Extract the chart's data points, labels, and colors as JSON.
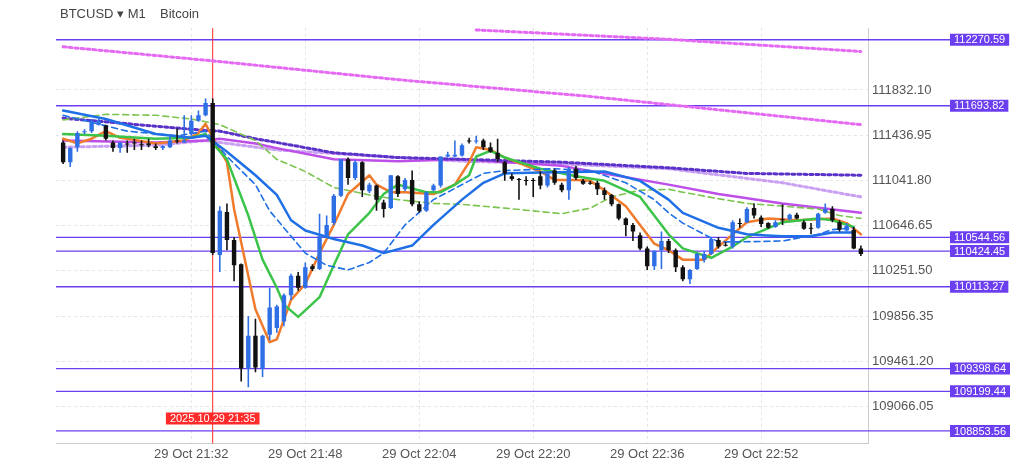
{
  "chart_data": {
    "type": "candlestick",
    "title": "BTCUSD ▾ M1",
    "subtitle": "Bitcoin",
    "x": [
      "2025-10-29T21:14",
      "2025-10-29T21:15",
      "2025-10-29T21:16",
      "2025-10-29T21:17",
      "2025-10-29T21:18",
      "2025-10-29T21:19",
      "2025-10-29T21:20",
      "2025-10-29T21:21",
      "2025-10-29T21:22",
      "2025-10-29T21:23",
      "2025-10-29T21:24",
      "2025-10-29T21:25",
      "2025-10-29T21:26",
      "2025-10-29T21:27",
      "2025-10-29T21:28",
      "2025-10-29T21:29",
      "2025-10-29T21:30",
      "2025-10-29T21:31",
      "2025-10-29T21:32",
      "2025-10-29T21:33",
      "2025-10-29T21:34",
      "2025-10-29T21:35",
      "2025-10-29T21:36",
      "2025-10-29T21:37",
      "2025-10-29T21:38",
      "2025-10-29T21:39",
      "2025-10-29T21:40",
      "2025-10-29T21:41",
      "2025-10-29T21:42",
      "2025-10-29T21:43",
      "2025-10-29T21:44",
      "2025-10-29T21:45",
      "2025-10-29T21:46",
      "2025-10-29T21:47",
      "2025-10-29T21:48",
      "2025-10-29T21:49",
      "2025-10-29T21:50",
      "2025-10-29T21:51",
      "2025-10-29T21:52",
      "2025-10-29T21:53",
      "2025-10-29T21:54",
      "2025-10-29T21:55",
      "2025-10-29T21:56",
      "2025-10-29T21:57",
      "2025-10-29T21:58",
      "2025-10-29T21:59",
      "2025-10-29T22:00",
      "2025-10-29T22:01",
      "2025-10-29T22:02",
      "2025-10-29T22:03",
      "2025-10-29T22:04",
      "2025-10-29T22:05",
      "2025-10-29T22:06",
      "2025-10-29T22:07",
      "2025-10-29T22:08",
      "2025-10-29T22:09",
      "2025-10-29T22:10",
      "2025-10-29T22:11",
      "2025-10-29T22:12",
      "2025-10-29T22:13",
      "2025-10-29T22:14",
      "2025-10-29T22:15",
      "2025-10-29T22:16",
      "2025-10-29T22:17",
      "2025-10-29T22:18",
      "2025-10-29T22:19",
      "2025-10-29T22:20",
      "2025-10-29T22:21",
      "2025-10-29T22:22",
      "2025-10-29T22:23",
      "2025-10-29T22:24",
      "2025-10-29T22:25",
      "2025-10-29T22:26",
      "2025-10-29T22:27",
      "2025-10-29T22:28",
      "2025-10-29T22:29",
      "2025-10-29T22:30",
      "2025-10-29T22:31",
      "2025-10-29T22:32",
      "2025-10-29T22:33",
      "2025-10-29T22:34",
      "2025-10-29T22:35",
      "2025-10-29T22:36",
      "2025-10-29T22:37",
      "2025-10-29T22:38",
      "2025-10-29T22:39",
      "2025-10-29T22:40",
      "2025-10-29T22:41",
      "2025-10-29T22:42",
      "2025-10-29T22:43",
      "2025-10-29T22:44",
      "2025-10-29T22:45",
      "2025-10-29T22:46",
      "2025-10-29T22:47",
      "2025-10-29T22:48",
      "2025-10-29T22:49",
      "2025-10-29T22:50",
      "2025-10-29T22:51",
      "2025-10-29T22:52",
      "2025-10-29T22:53",
      "2025-10-29T22:54",
      "2025-10-29T22:55",
      "2025-10-29T22:56",
      "2025-10-29T22:57",
      "2025-10-29T22:58",
      "2025-10-29T22:59",
      "2025-10-29T23:00",
      "2025-10-29T23:01",
      "2025-10-29T23:02",
      "2025-10-29T23:03",
      "2025-10-29T23:04",
      "2025-10-29T23:05",
      "2025-10-29T23:06"
    ],
    "ohlc": [
      [
        111373,
        111390,
        111185,
        111201
      ],
      [
        111201,
        111332,
        111160,
        111324
      ],
      [
        111332,
        111472,
        111292,
        111455
      ],
      [
        111464,
        111488,
        111447,
        111472
      ],
      [
        111472,
        111578,
        111455,
        111562
      ],
      [
        111529,
        111578,
        111521,
        111562
      ],
      [
        111521,
        111529,
        111390,
        111406
      ],
      [
        111373,
        111390,
        111292,
        111324
      ],
      [
        111324,
        111373,
        111283,
        111373
      ],
      [
        111365,
        111390,
        111283,
        111357
      ],
      [
        111373,
        111406,
        111308,
        111373
      ],
      [
        111357,
        111390,
        111308,
        111349
      ],
      [
        111365,
        111406,
        111332,
        111349
      ],
      [
        111341,
        111365,
        111308,
        111324
      ],
      [
        111324,
        111349,
        111308,
        111341
      ],
      [
        111332,
        111447,
        111324,
        111390
      ],
      [
        111390,
        111496,
        111365,
        111382
      ],
      [
        111373,
        111611,
        111373,
        111390
      ],
      [
        111447,
        111611,
        111431,
        111562
      ],
      [
        111562,
        111652,
        111554,
        111611
      ],
      [
        111611,
        111758,
        111603,
        111717
      ],
      [
        111717,
        111758,
        110391,
        110407
      ],
      [
        110391,
        110817,
        110243,
        110776
      ],
      [
        110767,
        110841,
        110432,
        110522
      ],
      [
        110522,
        110546,
        110161,
        110300
      ],
      [
        110309,
        110317,
        109285,
        109400
      ],
      [
        109400,
        109858,
        109236,
        109686
      ],
      [
        109686,
        109834,
        109367,
        109408
      ],
      [
        109400,
        109694,
        109326,
        109686
      ],
      [
        109694,
        110104,
        109645,
        109932
      ],
      [
        109752,
        109957,
        109711,
        109940
      ],
      [
        109809,
        110055,
        109768,
        110038
      ],
      [
        110038,
        110227,
        109998,
        110210
      ],
      [
        110210,
        110243,
        110079,
        110104
      ],
      [
        110104,
        110325,
        110096,
        110284
      ],
      [
        110292,
        110309,
        110251,
        110268
      ],
      [
        110268,
        110751,
        110260,
        110554
      ],
      [
        110554,
        110735,
        110546,
        110653
      ],
      [
        110669,
        110923,
        110653,
        110907
      ],
      [
        110907,
        111226,
        110898,
        111226
      ],
      [
        111226,
        111242,
        111005,
        111062
      ],
      [
        111062,
        111218,
        111046,
        111201
      ],
      [
        111201,
        111210,
        110898,
        110956
      ],
      [
        110948,
        111021,
        110931,
        111005
      ],
      [
        110997,
        111005,
        110776,
        110874
      ],
      [
        110849,
        110874,
        110718,
        110792
      ],
      [
        110800,
        111087,
        110792,
        111087
      ],
      [
        111079,
        111087,
        110898,
        110923
      ],
      [
        110964,
        111062,
        110948,
        111046
      ],
      [
        111046,
        111128,
        110817,
        110833
      ],
      [
        110833,
        110857,
        110759,
        110776
      ],
      [
        110776,
        110948,
        110767,
        110939
      ],
      [
        110956,
        111013,
        110948,
        110997
      ],
      [
        110997,
        111251,
        110980,
        111251
      ],
      [
        111251,
        111292,
        111242,
        111267
      ],
      [
        111251,
        111390,
        111242,
        111267
      ],
      [
        111259,
        111365,
        111251,
        111349
      ],
      [
        111390,
        111414,
        111365,
        111382
      ],
      [
        111382,
        111431,
        111365,
        111390
      ],
      [
        111390,
        111406,
        111308,
        111332
      ],
      [
        111332,
        111373,
        111283,
        111292
      ],
      [
        111283,
        111406,
        111201,
        111226
      ],
      [
        111201,
        111210,
        111038,
        111103
      ],
      [
        111079,
        111103,
        111038,
        111054
      ],
      [
        111054,
        111062,
        110874,
        111046
      ],
      [
        111046,
        111079,
        110997,
        111038
      ],
      [
        111046,
        111062,
        110898,
        111038
      ],
      [
        111079,
        111120,
        110964,
        110997
      ],
      [
        110997,
        111120,
        110980,
        111103
      ],
      [
        111128,
        111144,
        111005,
        111021
      ],
      [
        111005,
        111021,
        110939,
        110956
      ],
      [
        110956,
        111160,
        110874,
        111144
      ],
      [
        111144,
        111169,
        111046,
        111062
      ],
      [
        111038,
        111054,
        111005,
        111013
      ],
      [
        111021,
        111038,
        111005,
        111013
      ],
      [
        111021,
        111038,
        110915,
        110964
      ],
      [
        110956,
        110980,
        110874,
        110915
      ],
      [
        110915,
        110923,
        110817,
        110833
      ],
      [
        110833,
        110841,
        110694,
        110710
      ],
      [
        110710,
        110718,
        110554,
        110653
      ],
      [
        110653,
        110669,
        110513,
        110595
      ],
      [
        110563,
        110587,
        110432,
        110448
      ],
      [
        110448,
        110464,
        110260,
        110292
      ],
      [
        110292,
        110432,
        110260,
        110423
      ],
      [
        110432,
        110595,
        110268,
        110513
      ],
      [
        110513,
        110530,
        110407,
        110432
      ],
      [
        110432,
        110448,
        110243,
        110284
      ],
      [
        110284,
        110300,
        110161,
        110178
      ],
      [
        110178,
        110268,
        110137,
        110260
      ],
      [
        110268,
        110407,
        110260,
        110399
      ],
      [
        110350,
        110423,
        110325,
        110399
      ],
      [
        110399,
        110546,
        110391,
        110530
      ],
      [
        110522,
        110546,
        110448,
        110464
      ],
      [
        110481,
        110505,
        110464,
        110473
      ],
      [
        110464,
        110694,
        110448,
        110677
      ],
      [
        110669,
        110710,
        110628,
        110669
      ],
      [
        110677,
        110808,
        110669,
        110792
      ],
      [
        110800,
        110841,
        110710,
        110735
      ],
      [
        110718,
        110735,
        110636,
        110661
      ],
      [
        110669,
        110677,
        110620,
        110628
      ],
      [
        110636,
        110694,
        110628,
        110677
      ],
      [
        110702,
        110833,
        110653,
        110694
      ],
      [
        110702,
        110751,
        110694,
        110743
      ],
      [
        110743,
        110759,
        110702,
        110710
      ],
      [
        110677,
        110694,
        110612,
        110620
      ],
      [
        110628,
        110669,
        110571,
        110628
      ],
      [
        110628,
        110759,
        110620,
        110751
      ],
      [
        110759,
        110841,
        110751,
        110792
      ],
      [
        110792,
        110817,
        110677,
        110694
      ],
      [
        110677,
        110694,
        110595,
        110612
      ],
      [
        110604,
        110669,
        110595,
        110645
      ],
      [
        110612,
        110636,
        110440,
        110448
      ],
      [
        110448,
        110473,
        110382,
        110399
      ]
    ],
    "colors": [
      "#111111",
      "#2f6fe6",
      "#2f6fe6",
      "#2f6fe6",
      "#2f6fe6",
      "#2f6fe6",
      "#111111",
      "#111111",
      "#2f6fe6",
      "#111111",
      "#111111",
      "#111111",
      "#111111",
      "#111111",
      "#2f6fe6",
      "#2f6fe6",
      "#111111",
      "#2f6fe6",
      "#2f6fe6",
      "#2f6fe6",
      "#2f6fe6",
      "#111111",
      "#2f6fe6",
      "#111111",
      "#111111",
      "#111111",
      "#2f6fe6",
      "#111111",
      "#2f6fe6",
      "#2f6fe6",
      "#2f6fe6",
      "#2f6fe6",
      "#2f6fe6",
      "#111111",
      "#2f6fe6",
      "#111111",
      "#2f6fe6",
      "#2f6fe6",
      "#2f6fe6",
      "#2f6fe6",
      "#111111",
      "#2f6fe6",
      "#111111",
      "#2f6fe6",
      "#111111",
      "#111111",
      "#2f6fe6",
      "#111111",
      "#2f6fe6",
      "#111111",
      "#111111",
      "#2f6fe6",
      "#2f6fe6",
      "#2f6fe6",
      "#2f6fe6",
      "#2f6fe6",
      "#2f6fe6",
      "#111111",
      "#2f6fe6",
      "#111111",
      "#111111",
      "#111111",
      "#111111",
      "#111111",
      "#111111",
      "#111111",
      "#111111",
      "#111111",
      "#2f6fe6",
      "#111111",
      "#111111",
      "#2f6fe6",
      "#111111",
      "#111111",
      "#111111",
      "#111111",
      "#111111",
      "#111111",
      "#111111",
      "#111111",
      "#111111",
      "#111111",
      "#111111",
      "#2f6fe6",
      "#2f6fe6",
      "#111111",
      "#111111",
      "#111111",
      "#2f6fe6",
      "#2f6fe6",
      "#2f6fe6",
      "#2f6fe6",
      "#111111",
      "#111111",
      "#2f6fe6",
      "#111111",
      "#2f6fe6",
      "#111111",
      "#111111",
      "#111111",
      "#2f6fe6",
      "#111111",
      "#2f6fe6",
      "#111111",
      "#111111",
      "#111111",
      "#2f6fe6",
      "#2f6fe6",
      "#111111",
      "#111111",
      "#2f6fe6",
      "#111111",
      "#111111"
    ],
    "series": [
      {
        "type": "line",
        "color": "#1f6fe6",
        "line_style": "solid",
        "x": [
          "2025-10-29T21:14",
          "2025-10-29T21:20",
          "2025-10-29T21:27",
          "2025-10-29T21:32",
          "2025-10-29T21:34",
          "2025-10-29T21:37",
          "2025-10-29T21:41",
          "2025-10-29T21:44",
          "2025-10-29T21:46",
          "2025-10-29T21:48",
          "2025-10-29T21:52",
          "2025-10-29T21:56",
          "2025-10-29T21:59",
          "2025-10-29T22:03",
          "2025-10-29T22:06",
          "2025-10-29T22:10",
          "2025-10-29T22:13",
          "2025-10-29T22:16",
          "2025-10-29T22:21",
          "2025-10-29T22:30",
          "2025-10-29T22:35",
          "2025-10-29T22:39",
          "2025-10-29T22:41",
          "2025-10-29T22:46",
          "2025-10-29T22:50",
          "2025-10-29T22:55",
          "2025-10-29T22:59",
          "2025-10-29T23:02",
          "2025-10-29T23:05"
        ],
        "values": [
          111652,
          111578,
          111447,
          111414,
          111431,
          111292,
          111087,
          110915,
          110694,
          110604,
          110530,
          110473,
          110407,
          110473,
          110653,
          110874,
          111021,
          111103,
          111111,
          111120,
          111038,
          110874,
          110759,
          110628,
          110571,
          110554,
          110554,
          110587,
          110587
        ]
      },
      {
        "type": "line",
        "color": "#1f6fe6",
        "line_style": "dashed",
        "x": [
          "2025-10-29T21:14",
          "2025-10-29T21:23",
          "2025-10-29T21:30",
          "2025-10-29T21:34",
          "2025-10-29T21:37",
          "2025-10-29T21:41",
          "2025-10-29T21:43",
          "2025-10-29T21:48",
          "2025-10-29T21:51",
          "2025-10-29T21:54",
          "2025-10-29T21:57",
          "2025-10-29T21:59",
          "2025-10-29T22:02",
          "2025-10-29T22:06",
          "2025-10-29T22:11",
          "2025-10-29T22:13",
          "2025-10-29T22:16",
          "2025-10-29T22:23",
          "2025-10-29T22:28",
          "2025-10-29T22:33",
          "2025-10-29T22:37",
          "2025-10-29T22:39",
          "2025-10-29T22:41",
          "2025-10-29T22:46",
          "2025-10-29T22:49",
          "2025-10-29T22:55",
          "2025-10-29T23:00",
          "2025-10-29T23:02",
          "2025-10-29T23:05"
        ],
        "values": [
          111611,
          111472,
          111431,
          111472,
          111251,
          111005,
          110776,
          110407,
          110300,
          110260,
          110325,
          110407,
          110653,
          110874,
          111038,
          111103,
          111128,
          111144,
          111128,
          111021,
          110874,
          110759,
          110669,
          110505,
          110505,
          110513,
          110571,
          110612,
          110628
        ]
      },
      {
        "type": "line",
        "color": "#3cc44a",
        "line_style": "solid",
        "x": [
          "2025-10-29T21:14",
          "2025-10-29T21:20",
          "2025-10-29T21:27",
          "2025-10-29T21:32",
          "2025-10-29T21:34",
          "2025-10-29T21:35",
          "2025-10-29T21:37",
          "2025-10-29T21:40",
          "2025-10-29T21:42",
          "2025-10-29T21:44",
          "2025-10-29T21:45",
          "2025-10-29T21:47",
          "2025-10-29T21:50",
          "2025-10-29T21:52",
          "2025-10-29T21:54",
          "2025-10-29T21:57",
          "2025-10-29T21:59",
          "2025-10-29T22:01",
          "2025-10-29T22:05",
          "2025-10-29T22:07",
          "2025-10-29T22:09",
          "2025-10-29T22:11",
          "2025-10-29T22:12",
          "2025-10-29T22:14",
          "2025-10-29T22:16",
          "2025-10-29T22:21",
          "2025-10-29T22:26",
          "2025-10-29T22:30",
          "2025-10-29T22:35",
          "2025-10-29T22:39",
          "2025-10-29T22:41",
          "2025-10-29T22:45",
          "2025-10-29T22:48",
          "2025-10-29T22:50",
          "2025-10-29T22:55",
          "2025-10-29T23:00",
          "2025-10-29T23:02",
          "2025-10-29T23:05"
        ],
        "values": [
          111447,
          111431,
          111406,
          111414,
          111447,
          111365,
          111226,
          110735,
          110350,
          110104,
          109957,
          109850,
          110022,
          110300,
          110571,
          110759,
          110923,
          111005,
          110939,
          110939,
          111005,
          111087,
          111251,
          111300,
          111242,
          111144,
          111079,
          111038,
          110898,
          110571,
          110448,
          110366,
          110464,
          110546,
          110677,
          110710,
          110694,
          110636
        ]
      },
      {
        "type": "line",
        "color": "#f07b2c",
        "line_style": "solid",
        "x": [
          "2025-10-29T21:14",
          "2025-10-29T21:16",
          "2025-10-29T21:18",
          "2025-10-29T21:20",
          "2025-10-29T21:22",
          "2025-10-29T21:23",
          "2025-10-29T21:27",
          "2025-10-29T21:31",
          "2025-10-29T21:33",
          "2025-10-29T21:34",
          "2025-10-29T21:35",
          "2025-10-29T21:37",
          "2025-10-29T21:38",
          "2025-10-29T21:41",
          "2025-10-29T21:43",
          "2025-10-29T21:44",
          "2025-10-29T21:46",
          "2025-10-29T21:48",
          "2025-10-29T21:50",
          "2025-10-29T21:52",
          "2025-10-29T21:54",
          "2025-10-29T21:57",
          "2025-10-29T21:58",
          "2025-10-29T22:00",
          "2025-10-29T22:02",
          "2025-10-29T22:06",
          "2025-10-29T22:09",
          "2025-10-29T22:11",
          "2025-10-29T22:12",
          "2025-10-29T22:14",
          "2025-10-29T22:16",
          "2025-10-29T22:19",
          "2025-10-29T22:21",
          "2025-10-29T22:23",
          "2025-10-29T22:26",
          "2025-10-29T22:28",
          "2025-10-29T22:30",
          "2025-10-29T22:33",
          "2025-10-29T22:35",
          "2025-10-29T22:37",
          "2025-10-29T22:39",
          "2025-10-29T22:41",
          "2025-10-29T22:44",
          "2025-10-29T22:46",
          "2025-10-29T22:48",
          "2025-10-29T22:50",
          "2025-10-29T22:53",
          "2025-10-29T22:57",
          "2025-10-29T23:02",
          "2025-10-29T23:04",
          "2025-10-29T23:06"
        ],
        "values": [
          111406,
          111365,
          111406,
          111472,
          111414,
          111406,
          111365,
          111390,
          111455,
          111537,
          111414,
          111201,
          110792,
          109916,
          109629,
          109654,
          109998,
          110137,
          110407,
          110653,
          110923,
          111087,
          111005,
          110939,
          110939,
          110923,
          111005,
          111201,
          111332,
          111308,
          111242,
          111169,
          111120,
          111046,
          111046,
          111038,
          110956,
          110817,
          110653,
          110489,
          110432,
          110350,
          110350,
          110464,
          110571,
          110677,
          110710,
          110694,
          110710,
          110669,
          110571
        ]
      },
      {
        "type": "line",
        "color": "#7cc44e",
        "line_style": "dashed",
        "x": [
          "2025-10-29T21:14",
          "2025-10-29T21:20",
          "2025-10-29T21:27",
          "2025-10-29T21:32",
          "2025-10-29T21:34",
          "2025-10-29T21:36",
          "2025-10-29T21:41",
          "2025-10-29T21:44",
          "2025-10-29T21:48",
          "2025-10-29T21:52",
          "2025-10-29T21:57",
          "2025-10-29T22:01",
          "2025-10-29T22:06",
          "2025-10-29T22:10",
          "2025-10-29T22:16",
          "2025-10-29T22:24",
          "2025-10-29T22:28",
          "2025-10-29T22:31",
          "2025-10-29T22:35",
          "2025-10-29T22:39",
          "2025-10-29T22:41",
          "2025-10-29T22:46",
          "2025-10-29T22:50",
          "2025-10-29T22:55",
          "2025-10-29T23:00",
          "2025-10-29T23:03",
          "2025-10-29T23:06"
        ],
        "values": [
          111570,
          111619,
          111611,
          111578,
          111554,
          111529,
          111390,
          111226,
          111120,
          110980,
          110915,
          110874,
          110841,
          110833,
          110800,
          110751,
          110800,
          110898,
          110956,
          110964,
          110939,
          110882,
          110841,
          110817,
          110792,
          110735,
          110710
        ]
      },
      {
        "type": "line",
        "color": "#5a32c8",
        "line_style": "dotted",
        "x": [
          "2025-10-29T21:14",
          "2025-10-29T21:23",
          "2025-10-29T21:32",
          "2025-10-29T21:36",
          "2025-10-29T21:41",
          "2025-10-29T21:44",
          "2025-10-29T21:52",
          "2025-10-29T22:01",
          "2025-10-29T22:10",
          "2025-10-29T22:24",
          "2025-10-29T22:39",
          "2025-10-29T22:50",
          "2025-10-29T23:06"
        ],
        "values": [
          111586,
          111537,
          111488,
          111472,
          111406,
          111373,
          111283,
          111242,
          111226,
          111201,
          111152,
          111103,
          111087
        ]
      },
      {
        "type": "line",
        "color": "#bd4fe8",
        "line_style": "solid",
        "x": [
          "2025-10-29T21:14",
          "2025-10-29T21:27",
          "2025-10-29T21:34",
          "2025-10-29T21:36",
          "2025-10-29T21:41",
          "2025-10-29T21:44",
          "2025-10-29T21:52",
          "2025-10-29T22:01",
          "2025-10-29T22:10",
          "2025-10-29T22:24",
          "2025-10-29T22:30",
          "2025-10-29T22:39",
          "2025-10-29T22:46",
          "2025-10-29T22:55",
          "2025-10-29T23:06"
        ],
        "values": [
          111390,
          111373,
          111390,
          111406,
          111365,
          111324,
          111226,
          111210,
          111226,
          111169,
          111103,
          111005,
          110923,
          110841,
          110759
        ]
      },
      {
        "type": "line",
        "color": "#c9a0f2",
        "line_style": "dotted",
        "x": [
          "2025-10-29T21:14",
          "2025-10-29T21:27",
          "2025-10-29T21:34",
          "2025-10-29T21:44",
          "2025-10-29T22:01",
          "2025-10-29T22:10",
          "2025-10-29T22:24",
          "2025-10-29T22:39",
          "2025-10-29T22:55",
          "2025-10-29T23:06"
        ],
        "values": [
          111332,
          111349,
          111390,
          111308,
          111242,
          111210,
          111185,
          111144,
          111021,
          110898
        ]
      },
      {
        "type": "line",
        "color": "#e46af2",
        "line_style": "dotted",
        "x": [
          "2025-10-29T21:14",
          "2025-10-29T21:35",
          "2025-10-29T22:01",
          "2025-10-29T22:28",
          "2025-10-29T23:06"
        ],
        "values": [
          112209,
          112086,
          111922,
          111775,
          111529
        ]
      },
      {
        "type": "line",
        "color": "#e46af2",
        "line_style": "dotted",
        "x": [
          "2025-10-29T22:12",
          "2025-10-29T22:39",
          "2025-10-29T23:06"
        ],
        "values": [
          112356,
          112274,
          112168
        ]
      }
    ],
    "xlim": [
      "2025-10-29T21:13",
      "2025-10-29T23:07"
    ],
    "xticks": [
      {
        "value": "2025-10-29T21:32",
        "label": "29 Oct 21:32"
      },
      {
        "value": "2025-10-29T21:48",
        "label": "29 Oct 21:48"
      },
      {
        "value": "2025-10-29T22:04",
        "label": "29 Oct 22:04"
      },
      {
        "value": "2025-10-29T22:20",
        "label": "29 Oct 22:20"
      },
      {
        "value": "2025-10-29T22:36",
        "label": "29 Oct 22:36"
      },
      {
        "value": "2025-10-29T22:52",
        "label": "29 Oct 22:52"
      }
    ],
    "ylim": [
      108745,
      112373
    ],
    "yticks": [
      {
        "value": 111832.1,
        "label": "111832.10"
      },
      {
        "value": 111436.95,
        "label": "111436.95"
      },
      {
        "value": 111041.8,
        "label": "111041.80"
      },
      {
        "value": 110646.65,
        "label": "110646.65"
      },
      {
        "value": 110251.5,
        "label": "110251.50"
      },
      {
        "value": 109856.35,
        "label": "109856.35"
      },
      {
        "value": 109461.2,
        "label": "109461.20"
      },
      {
        "value": 109066.05,
        "label": "109066.05"
      }
    ],
    "grid": true,
    "ref_lines": [
      {
        "axis": "y",
        "value": 112270.59,
        "label": "112270.59",
        "color": "#6b3ff0"
      },
      {
        "axis": "y",
        "value": 111693.82,
        "label": "111693.82",
        "color": "#6b3ff0"
      },
      {
        "axis": "y",
        "value": 110544.56,
        "label": "110544.56",
        "color": "#6b3ff0"
      },
      {
        "axis": "y",
        "value": 110424.45,
        "label": "110424.45",
        "color": "#6b3ff0"
      },
      {
        "axis": "y",
        "value": 110113.27,
        "label": "110113.27",
        "color": "#6b3ff0"
      },
      {
        "axis": "y",
        "value": 109398.64,
        "label": "109398.64",
        "color": "#6b3ff0"
      },
      {
        "axis": "y",
        "value": 109199.44,
        "label": "109199.44",
        "color": "#6b3ff0"
      },
      {
        "axis": "y",
        "value": 108853.56,
        "label": "108853.56",
        "color": "#6b3ff0"
      },
      {
        "axis": "x",
        "value": "2025-10-29T21:35",
        "label": "2025.10.29 21:35",
        "color": "#ff2a2a"
      }
    ]
  }
}
